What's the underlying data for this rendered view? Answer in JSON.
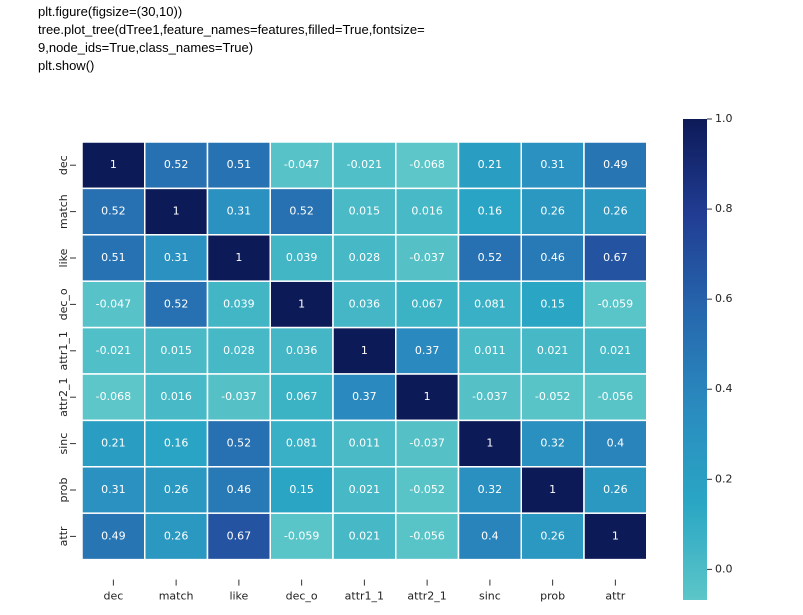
{
  "code": [
    "plt.figure(figsize=(30,10))",
    "tree.plot_tree(dTree1,feature_names=features,filled=True,fontsize=",
    "9,node_ids=True,class_names=True)",
    "plt.show()"
  ],
  "chart_data": {
    "type": "heatmap",
    "categories": [
      "dec",
      "match",
      "like",
      "dec_o",
      "attr1_1",
      "attr2_1",
      "sinc",
      "prob",
      "attr"
    ],
    "values": [
      [
        1,
        0.52,
        0.51,
        -0.047,
        -0.021,
        -0.068,
        0.21,
        0.31,
        0.49
      ],
      [
        0.52,
        1,
        0.31,
        0.52,
        0.015,
        0.016,
        0.16,
        0.26,
        0.26
      ],
      [
        0.51,
        0.31,
        1,
        0.039,
        0.028,
        -0.037,
        0.52,
        0.46,
        0.67
      ],
      [
        -0.047,
        0.52,
        0.039,
        1,
        0.036,
        0.067,
        0.081,
        0.15,
        -0.059
      ],
      [
        -0.021,
        0.015,
        0.028,
        0.036,
        1,
        0.37,
        0.011,
        0.021,
        0.021
      ],
      [
        -0.068,
        0.016,
        -0.037,
        0.067,
        0.37,
        1,
        -0.037,
        -0.052,
        -0.056
      ],
      [
        0.21,
        0.16,
        0.52,
        0.081,
        0.011,
        -0.037,
        1,
        0.32,
        0.4
      ],
      [
        0.31,
        0.26,
        0.46,
        0.15,
        0.021,
        -0.052,
        0.32,
        1,
        0.26
      ],
      [
        0.49,
        0.26,
        0.67,
        -0.059,
        0.021,
        -0.056,
        0.4,
        0.26,
        1
      ]
    ],
    "clim": [
      -0.068,
      1.0
    ],
    "colorbar_ticks": [
      {
        "value": 0,
        "label": "0.0"
      },
      {
        "value": 0.2,
        "label": "0.2"
      },
      {
        "value": 0.4,
        "label": "0.4"
      },
      {
        "value": 0.6,
        "label": "0.6"
      },
      {
        "value": 0.8,
        "label": "0.8"
      },
      {
        "value": 1,
        "label": "1.0"
      }
    ],
    "colormap": [
      "#5cc6c8",
      "#2aa6c4",
      "#2a8bbf",
      "#2667ad",
      "#213d93",
      "#0d1a58"
    ]
  }
}
